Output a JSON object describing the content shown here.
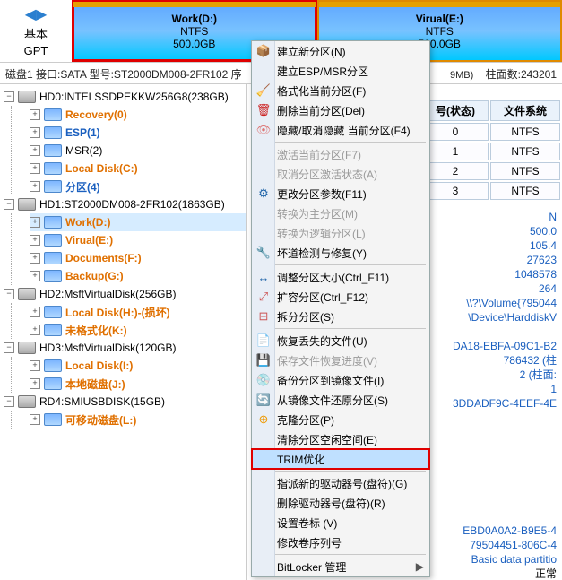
{
  "toolbar": {
    "basic_label": "基本",
    "gpt_label": "GPT",
    "partitions": [
      {
        "name": "Work(D:)",
        "fs": "NTFS",
        "size": "500.0GB",
        "selected": true
      },
      {
        "name": "Virual(E:)",
        "fs": "NTFS",
        "size": "500.0GB",
        "selected": false
      }
    ]
  },
  "status": {
    "text": "磁盘1 接口:SATA 型号:ST2000DM008-2FR102 序",
    "mb": "9MB)",
    "cyl": "柱面数:243201"
  },
  "tree": [
    {
      "type": "disk",
      "label": "HD0:INTELSSDPEKKW256G8(238GB)",
      "children": [
        {
          "label": "Recovery(0)",
          "cls": "orange"
        },
        {
          "label": "ESP(1)",
          "cls": "blue"
        },
        {
          "label": "MSR(2)",
          "cls": ""
        },
        {
          "label": "Local Disk(C:)",
          "cls": "orange"
        },
        {
          "label": "分区(4)",
          "cls": "blue"
        }
      ]
    },
    {
      "type": "disk",
      "label": "HD1:ST2000DM008-2FR102(1863GB)",
      "children": [
        {
          "label": "Work(D:)",
          "cls": "orange",
          "selected": true
        },
        {
          "label": "Virual(E:)",
          "cls": "orange"
        },
        {
          "label": "Documents(F:)",
          "cls": "orange"
        },
        {
          "label": "Backup(G:)",
          "cls": "orange"
        }
      ]
    },
    {
      "type": "disk",
      "label": "HD2:MsftVirtualDisk(256GB)",
      "children": [
        {
          "label": "Local Disk(H:)-(损坏)",
          "cls": "orange"
        },
        {
          "label": "未格式化(K:)",
          "cls": "orange"
        }
      ]
    },
    {
      "type": "disk",
      "label": "HD3:MsftVirtualDisk(120GB)",
      "children": [
        {
          "label": "Local Disk(I:)",
          "cls": "orange"
        },
        {
          "label": "本地磁盘(J:)",
          "cls": "orange"
        }
      ]
    },
    {
      "type": "disk",
      "label": "RD4:SMIUSBDISK(15GB)",
      "children": [
        {
          "label": "可移动磁盘(L:)",
          "cls": "orange"
        }
      ]
    }
  ],
  "right_table": {
    "hdr1": "号(状态)",
    "hdr2": "文件系统",
    "rows": [
      [
        "0",
        "NTFS"
      ],
      [
        "1",
        "NTFS"
      ],
      [
        "2",
        "NTFS"
      ],
      [
        "3",
        "NTFS"
      ]
    ]
  },
  "right_info": [
    "N",
    "500.0",
    "105.4",
    "27623",
    "1048578",
    "264",
    "\\\\?\\Volume{795044",
    "\\Device\\HarddiskV",
    "",
    "DA18-EBFA-09C1-B2",
    "786432 (柱",
    "2 (柱面:",
    "1",
    "3DDADF9C-4EEF-4E"
  ],
  "right_info2": [
    "EBD0A0A2-B9E5-4",
    "79504451-806C-4",
    "Basic data partitio",
    "正常"
  ],
  "ctx": {
    "items": [
      {
        "label": "建立新分区(N)",
        "icon": "📦",
        "color": "#3b7"
      },
      {
        "label": "建立ESP/MSR分区",
        "icon": ""
      },
      {
        "label": "格式化当前分区(F)",
        "icon": "🧹",
        "color": "#c22"
      },
      {
        "label": "删除当前分区(Del)",
        "icon": "🗑",
        "color": "#c22"
      },
      {
        "label": "隐藏/取消隐藏 当前分区(F4)",
        "icon": "👁",
        "color": "#d77"
      },
      {
        "sep": true
      },
      {
        "label": "激活当前分区(F7)",
        "disabled": true
      },
      {
        "label": "取消分区激活状态(A)",
        "disabled": true
      },
      {
        "label": "更改分区参数(F11)",
        "icon": "⚙",
        "color": "#26a"
      },
      {
        "label": "转换为主分区(M)",
        "disabled": true
      },
      {
        "label": "转换为逻辑分区(L)",
        "disabled": true
      },
      {
        "label": "坏道检测与修复(Y)",
        "icon": "🔧",
        "color": "#e90"
      },
      {
        "sep": true
      },
      {
        "label": "调整分区大小(Ctrl_F11)",
        "icon": "↔",
        "color": "#26a"
      },
      {
        "label": "扩容分区(Ctrl_F12)",
        "icon": "⤢",
        "color": "#c55"
      },
      {
        "label": "拆分分区(S)",
        "icon": "⊟",
        "color": "#c55"
      },
      {
        "sep": true
      },
      {
        "label": "恢复丢失的文件(U)",
        "icon": "📄",
        "color": "#4a4"
      },
      {
        "label": "保存文件恢复进度(V)",
        "icon": "💾",
        "color": "#8ad",
        "disabled": true
      },
      {
        "label": "备份分区到镜像文件(I)",
        "icon": "💿",
        "color": "#e90"
      },
      {
        "label": "从镜像文件还原分区(S)",
        "icon": "🔄",
        "color": "#e90"
      },
      {
        "label": "克隆分区(P)",
        "icon": "⊕",
        "color": "#e90"
      },
      {
        "label": "清除分区空闲空间(E)"
      },
      {
        "label": "TRIM优化",
        "highlight": true
      },
      {
        "sep": true
      },
      {
        "label": "指派新的驱动器号(盘符)(G)"
      },
      {
        "label": "删除驱动器号(盘符)(R)"
      },
      {
        "label": "设置卷标 (V)"
      },
      {
        "label": "修改卷序列号"
      },
      {
        "sep": true
      },
      {
        "label": "BitLocker 管理",
        "chev": true
      }
    ]
  },
  "colors": {
    "orange": "#e07000",
    "blue": "#1a5fbf",
    "highlight_bg": "#bfe0ff",
    "red_outline": "#e00000"
  }
}
